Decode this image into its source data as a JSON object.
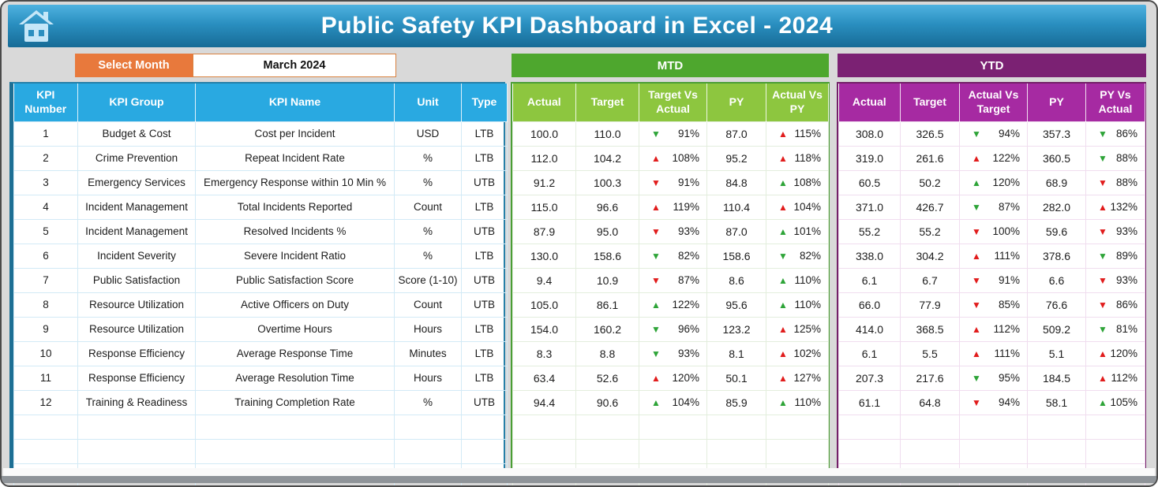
{
  "header": {
    "title": "Public Safety KPI Dashboard in Excel - 2024"
  },
  "controls": {
    "select_month_label": "Select Month",
    "selected_month": "March 2024"
  },
  "colors": {
    "kpi_header_blue": "#29a9e1",
    "orange": "#e8793c",
    "mtd_banner_green": "#4ea72e",
    "mtd_header_green": "#8dc63f",
    "ytd_banner_purple": "#7b2173",
    "ytd_header_magenta": "#a62aa2",
    "trend_green": "#2ea438",
    "trend_red": "#e11c1c"
  },
  "tables": {
    "kpi": {
      "columns": [
        "KPI Number",
        "KPI Group",
        "KPI Name",
        "Unit",
        "Type"
      ],
      "rows": [
        [
          "1",
          "Budget & Cost",
          "Cost per Incident",
          "USD",
          "LTB"
        ],
        [
          "2",
          "Crime Prevention",
          "Repeat Incident Rate",
          "%",
          "LTB"
        ],
        [
          "3",
          "Emergency Services",
          "Emergency Response within 10 Min %",
          "%",
          "UTB"
        ],
        [
          "4",
          "Incident Management",
          "Total Incidents Reported",
          "Count",
          "LTB"
        ],
        [
          "5",
          "Incident Management",
          "Resolved Incidents %",
          "%",
          "UTB"
        ],
        [
          "6",
          "Incident Severity",
          "Severe Incident Ratio",
          "%",
          "LTB"
        ],
        [
          "7",
          "Public Satisfaction",
          "Public Satisfaction Score",
          "Score (1-10)",
          "UTB"
        ],
        [
          "8",
          "Resource Utilization",
          "Active Officers on Duty",
          "Count",
          "UTB"
        ],
        [
          "9",
          "Resource Utilization",
          "Overtime Hours",
          "Hours",
          "LTB"
        ],
        [
          "10",
          "Response Efficiency",
          "Average Response Time",
          "Minutes",
          "LTB"
        ],
        [
          "11",
          "Response Efficiency",
          "Average Resolution Time",
          "Hours",
          "LTB"
        ],
        [
          "12",
          "Training & Readiness",
          "Training Completion Rate",
          "%",
          "UTB"
        ]
      ],
      "empty_row_count": 3
    },
    "mtd": {
      "title": "MTD",
      "columns": [
        "Actual",
        "Target",
        "Target Vs Actual",
        "PY",
        "Actual Vs PY"
      ],
      "rows": [
        [
          "100.0",
          "110.0",
          {
            "arrow": "down",
            "color": "green",
            "value": "91%"
          },
          "87.0",
          {
            "arrow": "up",
            "color": "red",
            "value": "115%"
          }
        ],
        [
          "112.0",
          "104.2",
          {
            "arrow": "up",
            "color": "red",
            "value": "108%"
          },
          "95.2",
          {
            "arrow": "up",
            "color": "red",
            "value": "118%"
          }
        ],
        [
          "91.2",
          "100.3",
          {
            "arrow": "down",
            "color": "red",
            "value": "91%"
          },
          "84.8",
          {
            "arrow": "up",
            "color": "green",
            "value": "108%"
          }
        ],
        [
          "115.0",
          "96.6",
          {
            "arrow": "up",
            "color": "red",
            "value": "119%"
          },
          "110.4",
          {
            "arrow": "up",
            "color": "red",
            "value": "104%"
          }
        ],
        [
          "87.9",
          "95.0",
          {
            "arrow": "down",
            "color": "red",
            "value": "93%"
          },
          "87.0",
          {
            "arrow": "up",
            "color": "green",
            "value": "101%"
          }
        ],
        [
          "130.0",
          "158.6",
          {
            "arrow": "down",
            "color": "green",
            "value": "82%"
          },
          "158.6",
          {
            "arrow": "down",
            "color": "green",
            "value": "82%"
          }
        ],
        [
          "9.4",
          "10.9",
          {
            "arrow": "down",
            "color": "red",
            "value": "87%"
          },
          "8.6",
          {
            "arrow": "up",
            "color": "green",
            "value": "110%"
          }
        ],
        [
          "105.0",
          "86.1",
          {
            "arrow": "up",
            "color": "green",
            "value": "122%"
          },
          "95.6",
          {
            "arrow": "up",
            "color": "green",
            "value": "110%"
          }
        ],
        [
          "154.0",
          "160.2",
          {
            "arrow": "down",
            "color": "green",
            "value": "96%"
          },
          "123.2",
          {
            "arrow": "up",
            "color": "red",
            "value": "125%"
          }
        ],
        [
          "8.3",
          "8.8",
          {
            "arrow": "down",
            "color": "green",
            "value": "93%"
          },
          "8.1",
          {
            "arrow": "up",
            "color": "red",
            "value": "102%"
          }
        ],
        [
          "63.4",
          "52.6",
          {
            "arrow": "up",
            "color": "red",
            "value": "120%"
          },
          "50.1",
          {
            "arrow": "up",
            "color": "red",
            "value": "127%"
          }
        ],
        [
          "94.4",
          "90.6",
          {
            "arrow": "up",
            "color": "green",
            "value": "104%"
          },
          "85.9",
          {
            "arrow": "up",
            "color": "green",
            "value": "110%"
          }
        ]
      ],
      "empty_row_count": 3
    },
    "ytd": {
      "title": "YTD",
      "columns": [
        "Actual",
        "Target",
        "Actual Vs Target",
        "PY",
        "PY Vs Actual"
      ],
      "rows": [
        [
          "308.0",
          "326.5",
          {
            "arrow": "down",
            "color": "green",
            "value": "94%"
          },
          "357.3",
          {
            "arrow": "down",
            "color": "green",
            "value": "86%"
          }
        ],
        [
          "319.0",
          "261.6",
          {
            "arrow": "up",
            "color": "red",
            "value": "122%"
          },
          "360.5",
          {
            "arrow": "down",
            "color": "green",
            "value": "88%"
          }
        ],
        [
          "60.5",
          "50.2",
          {
            "arrow": "up",
            "color": "green",
            "value": "120%"
          },
          "68.9",
          {
            "arrow": "down",
            "color": "red",
            "value": "88%"
          }
        ],
        [
          "371.0",
          "426.7",
          {
            "arrow": "down",
            "color": "green",
            "value": "87%"
          },
          "282.0",
          {
            "arrow": "up",
            "color": "red",
            "value": "132%"
          }
        ],
        [
          "55.2",
          "55.2",
          {
            "arrow": "down",
            "color": "red",
            "value": "100%"
          },
          "59.6",
          {
            "arrow": "down",
            "color": "red",
            "value": "93%"
          }
        ],
        [
          "338.0",
          "304.2",
          {
            "arrow": "up",
            "color": "red",
            "value": "111%"
          },
          "378.6",
          {
            "arrow": "down",
            "color": "green",
            "value": "89%"
          }
        ],
        [
          "6.1",
          "6.7",
          {
            "arrow": "down",
            "color": "red",
            "value": "91%"
          },
          "6.6",
          {
            "arrow": "down",
            "color": "red",
            "value": "93%"
          }
        ],
        [
          "66.0",
          "77.9",
          {
            "arrow": "down",
            "color": "red",
            "value": "85%"
          },
          "76.6",
          {
            "arrow": "down",
            "color": "red",
            "value": "86%"
          }
        ],
        [
          "414.0",
          "368.5",
          {
            "arrow": "up",
            "color": "red",
            "value": "112%"
          },
          "509.2",
          {
            "arrow": "down",
            "color": "green",
            "value": "81%"
          }
        ],
        [
          "6.1",
          "5.5",
          {
            "arrow": "up",
            "color": "red",
            "value": "111%"
          },
          "5.1",
          {
            "arrow": "up",
            "color": "red",
            "value": "120%"
          }
        ],
        [
          "207.3",
          "217.6",
          {
            "arrow": "down",
            "color": "green",
            "value": "95%"
          },
          "184.5",
          {
            "arrow": "up",
            "color": "red",
            "value": "112%"
          }
        ],
        [
          "61.1",
          "64.8",
          {
            "arrow": "down",
            "color": "red",
            "value": "94%"
          },
          "58.1",
          {
            "arrow": "up",
            "color": "green",
            "value": "105%"
          }
        ]
      ],
      "empty_row_count": 3
    }
  }
}
